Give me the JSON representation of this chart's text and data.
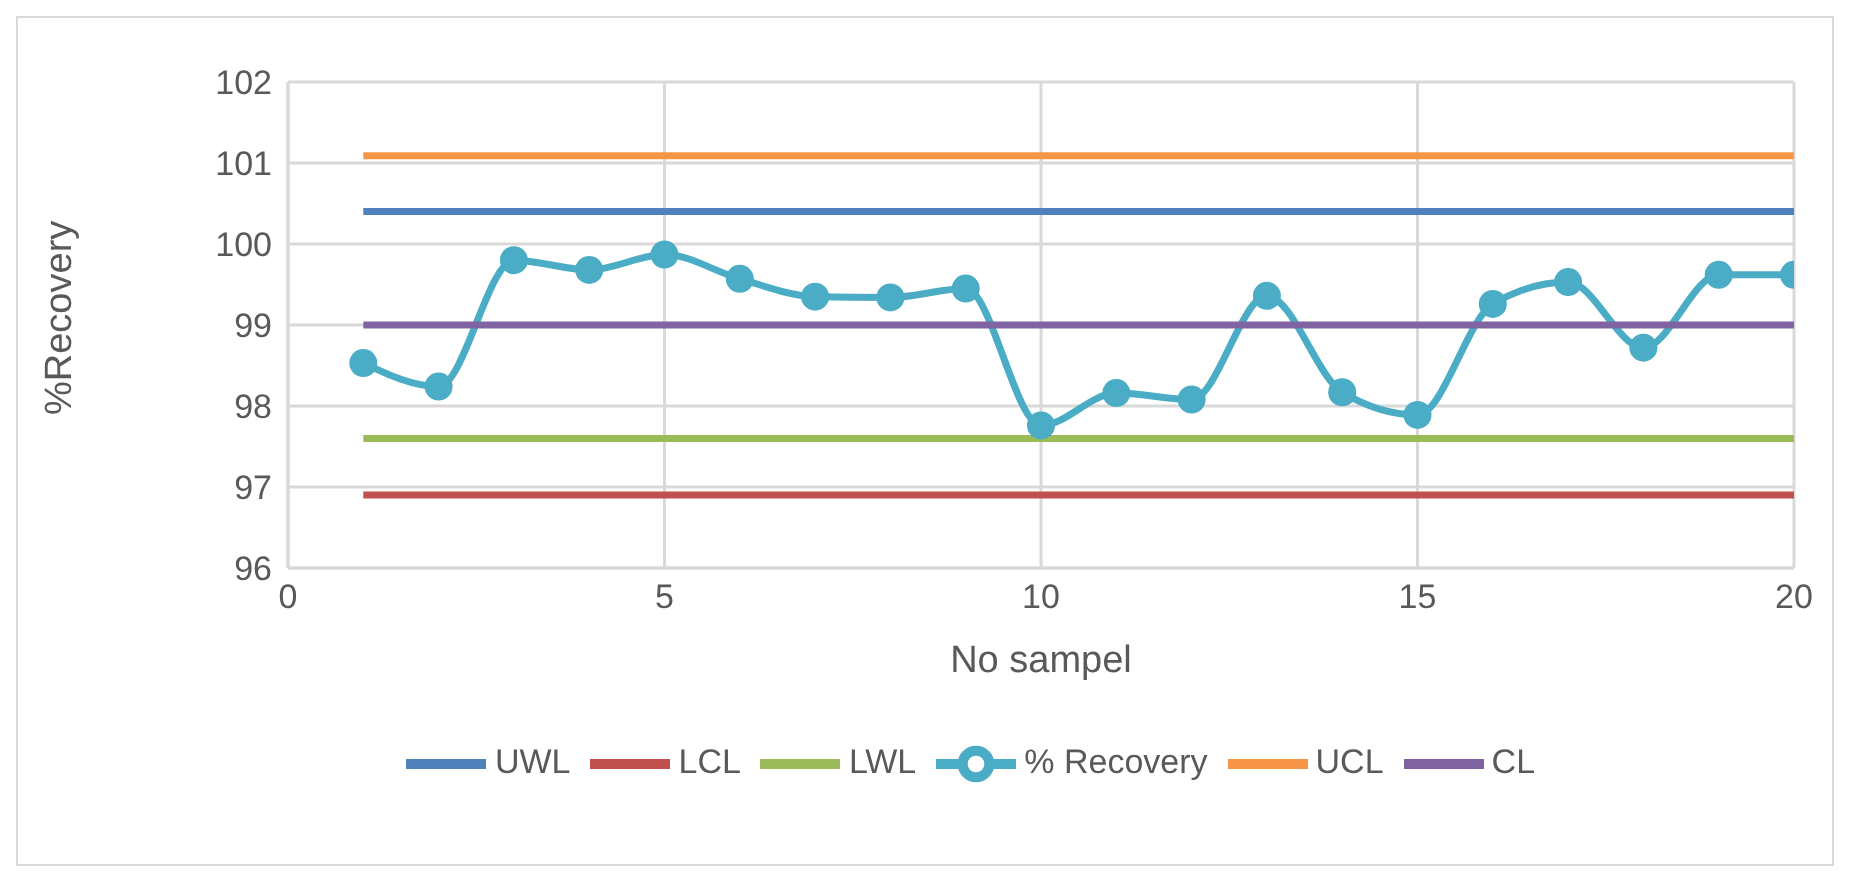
{
  "chart_data": {
    "type": "line",
    "xlabel": "No sampel",
    "ylabel": "%Recovery",
    "xlim": [
      0,
      20
    ],
    "xticks": [
      0,
      5,
      10,
      15,
      20
    ],
    "ylim": [
      96,
      102
    ],
    "yticks": [
      96,
      97,
      98,
      99,
      100,
      101,
      102
    ],
    "grid": true,
    "legend": "bottom",
    "series": [
      {
        "name": "UWL",
        "color": "#4f81bd",
        "marker": "none",
        "x": [
          1,
          20
        ],
        "values": [
          100.4,
          100.4
        ]
      },
      {
        "name": "LCL",
        "color": "#c0504d",
        "marker": "none",
        "x": [
          1,
          20
        ],
        "values": [
          96.9,
          96.9
        ]
      },
      {
        "name": "LWL",
        "color": "#9bbb59",
        "marker": "none",
        "x": [
          1,
          20
        ],
        "values": [
          97.6,
          97.6
        ]
      },
      {
        "name": "% Recovery",
        "color": "#4bacc6",
        "marker": "circle",
        "x": [
          1,
          2,
          3,
          4,
          5,
          6,
          7,
          8,
          9,
          10,
          11,
          12,
          13,
          14,
          15,
          16,
          17,
          18,
          19,
          20
        ],
        "values": [
          98.53,
          98.24,
          99.8,
          99.68,
          99.87,
          99.57,
          99.35,
          99.34,
          99.45,
          97.76,
          98.16,
          98.08,
          99.36,
          98.17,
          97.89,
          99.26,
          99.53,
          98.72,
          99.62,
          99.62
        ]
      },
      {
        "name": "UCL",
        "color": "#f79646",
        "marker": "none",
        "x": [
          1,
          20
        ],
        "values": [
          101.09,
          101.09
        ]
      },
      {
        "name": "CL",
        "color": "#8064a2",
        "marker": "none",
        "x": [
          1,
          20
        ],
        "values": [
          99.0,
          99.0
        ]
      }
    ]
  }
}
